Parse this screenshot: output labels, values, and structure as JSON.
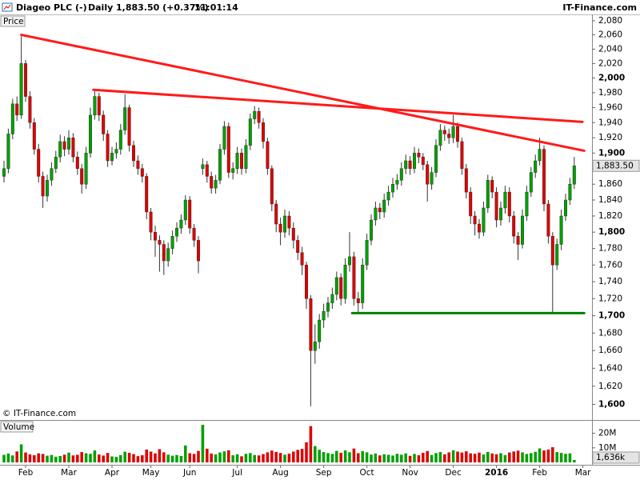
{
  "header": {
    "title": "Diageo PLC (-)",
    "interval": "Daily",
    "quote": "1,883.50 (+0.37%)",
    "time": "11:01:14",
    "brand": "IT-Finance.com"
  },
  "chart_data": {
    "type": "candlestick",
    "price_label": "Price",
    "volume_label": "Volume",
    "credit": "© IT-Finance.com",
    "up_color": "#00a000",
    "down_color": "#dd0000",
    "wick_color": "#333333",
    "log": true,
    "ylim": [
      1583,
      2089
    ],
    "yticks": [
      {
        "value": 1600,
        "label": "1,600"
      },
      {
        "value": 1620,
        "label": "1,620"
      },
      {
        "value": 1640,
        "label": "1,640"
      },
      {
        "value": 1660,
        "label": "1,660"
      },
      {
        "value": 1680,
        "label": "1,680"
      },
      {
        "value": 1700,
        "label": "1,700"
      },
      {
        "value": 1720,
        "label": "1,720"
      },
      {
        "value": 1740,
        "label": "1,740"
      },
      {
        "value": 1760,
        "label": "1,760"
      },
      {
        "value": 1780,
        "label": "1,780"
      },
      {
        "value": 1800,
        "label": "1,800"
      },
      {
        "value": 1820,
        "label": "1,820"
      },
      {
        "value": 1840,
        "label": "1,840"
      },
      {
        "value": 1860,
        "label": "1,860"
      },
      {
        "value": 1880,
        "label": "1,880"
      },
      {
        "value": 1900,
        "label": "1,900"
      },
      {
        "value": 1920,
        "label": "1,920"
      },
      {
        "value": 1940,
        "label": "1,940"
      },
      {
        "value": 1960,
        "label": "1,960"
      },
      {
        "value": 1980,
        "label": "1,980"
      },
      {
        "value": 2000,
        "label": "2,000"
      },
      {
        "value": 2020,
        "label": "2,020"
      },
      {
        "value": 2040,
        "label": "2,040"
      },
      {
        "value": 2060,
        "label": "2,060"
      },
      {
        "value": 2080,
        "label": "2,080"
      }
    ],
    "last_price": {
      "value": 1883.5,
      "label": "1,883.50"
    },
    "volume_ylim": [
      0,
      28
    ],
    "volume_ticks": [
      {
        "value": 20,
        "label": "20M"
      },
      {
        "value": 10,
        "label": "10M"
      }
    ],
    "last_volume": {
      "value": 1.636,
      "label": "1,636k"
    },
    "categories": [
      null,
      null,
      null,
      null,
      null,
      "Feb",
      null,
      null,
      null,
      null,
      null,
      null,
      null,
      null,
      null,
      "Mar",
      null,
      null,
      null,
      null,
      null,
      null,
      null,
      null,
      null,
      "Apr",
      null,
      null,
      null,
      null,
      null,
      null,
      null,
      null,
      "May",
      null,
      null,
      null,
      null,
      null,
      null,
      null,
      null,
      "Jun",
      null,
      null,
      null,
      null,
      null,
      null,
      null,
      null,
      null,
      null,
      "Jul",
      null,
      null,
      null,
      null,
      null,
      null,
      null,
      null,
      null,
      "Aug",
      null,
      null,
      null,
      null,
      null,
      null,
      null,
      null,
      null,
      "Sep",
      null,
      null,
      null,
      null,
      null,
      null,
      null,
      null,
      null,
      "Oct",
      null,
      null,
      null,
      null,
      null,
      null,
      null,
      null,
      null,
      "Nov",
      null,
      null,
      null,
      null,
      null,
      null,
      null,
      null,
      null,
      "Dec",
      null,
      null,
      null,
      null,
      null,
      null,
      null,
      null,
      null,
      "2016",
      null,
      null,
      null,
      null,
      null,
      null,
      null,
      null,
      null,
      "Feb",
      null,
      null,
      null,
      null,
      null,
      null,
      null,
      null,
      null,
      "Mar",
      null
    ],
    "open": [
      1870,
      1880,
      1925,
      1965,
      1950,
      2020,
      1975,
      1940,
      1905,
      1870,
      1845,
      1865,
      1880,
      1895,
      1915,
      1905,
      1920,
      1895,
      1880,
      1860,
      1900,
      1950,
      1975,
      1950,
      1925,
      1890,
      1900,
      1905,
      1930,
      1960,
      1910,
      1890,
      1880,
      1870,
      1825,
      1800,
      1790,
      1785,
      1765,
      1780,
      1795,
      1805,
      1815,
      1840,
      1805,
      1790,
      1880,
      1885,
      1870,
      1855,
      1865,
      1905,
      1935,
      1875,
      1880,
      1900,
      1880,
      1910,
      1945,
      1955,
      1940,
      1915,
      1880,
      1835,
      1810,
      1800,
      1820,
      1805,
      1790,
      1775,
      1760,
      1720,
      1660,
      1670,
      1695,
      1705,
      1715,
      1725,
      1745,
      1720,
      1760,
      1770,
      1720,
      1715,
      1760,
      1790,
      1815,
      1830,
      1825,
      1840,
      1850,
      1860,
      1865,
      1880,
      1890,
      1880,
      1900,
      1895,
      1885,
      1860,
      1875,
      1910,
      1930,
      1925,
      1920,
      1935,
      1915,
      1880,
      1850,
      1820,
      1810,
      1800,
      1830,
      1865,
      1850,
      1815,
      1830,
      1850,
      1820,
      1795,
      1785,
      1820,
      1850,
      1875,
      1890,
      1905,
      1835,
      1795,
      1760,
      1785,
      1820,
      1840,
      1860,
      null,
      null,
      null
    ],
    "high": [
      1890,
      1932,
      1972,
      1975,
      2058,
      2025,
      1982,
      1946,
      1912,
      1876,
      1872,
      1888,
      1903,
      1924,
      1922,
      1930,
      1926,
      1902,
      1886,
      1908,
      1960,
      1982,
      1980,
      1956,
      1930,
      1908,
      1914,
      1938,
      1978,
      1964,
      1916,
      1897,
      1886,
      1874,
      1830,
      1808,
      1796,
      1790,
      1787,
      1802,
      1812,
      1822,
      1846,
      1845,
      1810,
      1795,
      1893,
      1890,
      1876,
      1872,
      1912,
      1942,
      1940,
      1888,
      1908,
      1906,
      1918,
      1952,
      1962,
      1960,
      1946,
      1920,
      1884,
      1840,
      1818,
      1828,
      1826,
      1812,
      1796,
      1782,
      1764,
      1724,
      1690,
      1702,
      1714,
      1722,
      1733,
      1752,
      1750,
      1768,
      1800,
      1776,
      1728,
      1768,
      1798,
      1822,
      1838,
      1836,
      1848,
      1858,
      1868,
      1873,
      1888,
      1898,
      1896,
      1908,
      1906,
      1900,
      1890,
      1882,
      1918,
      1938,
      1936,
      1932,
      1950,
      1940,
      1920,
      1886,
      1856,
      1826,
      1816,
      1838,
      1872,
      1870,
      1856,
      1838,
      1858,
      1856,
      1826,
      1800,
      1828,
      1858,
      1882,
      1898,
      1920,
      1910,
      1840,
      1800,
      1792,
      1828,
      1848,
      1868,
      1895,
      null,
      null,
      null
    ],
    "low": [
      1862,
      1874,
      1918,
      1942,
      1945,
      1968,
      1932,
      1898,
      1862,
      1830,
      1838,
      1858,
      1874,
      1888,
      1896,
      1898,
      1888,
      1872,
      1848,
      1854,
      1894,
      1944,
      1942,
      1916,
      1882,
      1884,
      1893,
      1898,
      1924,
      1902,
      1882,
      1872,
      1862,
      1816,
      1790,
      1770,
      1752,
      1748,
      1758,
      1773,
      1788,
      1798,
      1809,
      1798,
      1782,
      1750,
      1872,
      1862,
      1848,
      1848,
      1860,
      1898,
      1868,
      1866,
      1873,
      1872,
      1874,
      1904,
      1938,
      1932,
      1906,
      1872,
      1826,
      1800,
      1784,
      1793,
      1796,
      1780,
      1766,
      1748,
      1708,
      1598,
      1645,
      1662,
      1686,
      1698,
      1708,
      1718,
      1712,
      1714,
      1752,
      1712,
      1704,
      1708,
      1754,
      1784,
      1808,
      1816,
      1818,
      1833,
      1843,
      1853,
      1858,
      1873,
      1872,
      1874,
      1887,
      1878,
      1838,
      1853,
      1869,
      1903,
      1916,
      1912,
      1913,
      1907,
      1872,
      1842,
      1810,
      1796,
      1792,
      1795,
      1824,
      1842,
      1806,
      1808,
      1823,
      1812,
      1786,
      1766,
      1780,
      1814,
      1844,
      1868,
      1884,
      1826,
      1786,
      1702,
      1754,
      1778,
      1814,
      1834,
      1854,
      null,
      null,
      null
    ],
    "close": [
      1880,
      1925,
      1965,
      1950,
      2020,
      1975,
      1940,
      1905,
      1870,
      1845,
      1865,
      1880,
      1895,
      1915,
      1905,
      1920,
      1895,
      1880,
      1860,
      1900,
      1950,
      1975,
      1950,
      1925,
      1890,
      1900,
      1905,
      1930,
      1960,
      1910,
      1890,
      1880,
      1870,
      1825,
      1800,
      1790,
      1785,
      1765,
      1780,
      1795,
      1805,
      1815,
      1840,
      1805,
      1790,
      1765,
      1885,
      1870,
      1855,
      1865,
      1905,
      1935,
      1875,
      1880,
      1900,
      1880,
      1910,
      1945,
      1955,
      1940,
      1915,
      1880,
      1835,
      1810,
      1800,
      1820,
      1805,
      1790,
      1775,
      1760,
      1720,
      1660,
      1670,
      1695,
      1705,
      1715,
      1725,
      1745,
      1720,
      1760,
      1770,
      1720,
      1715,
      1760,
      1790,
      1815,
      1830,
      1825,
      1840,
      1850,
      1860,
      1865,
      1880,
      1890,
      1880,
      1900,
      1895,
      1885,
      1860,
      1875,
      1910,
      1930,
      1925,
      1920,
      1935,
      1915,
      1880,
      1850,
      1820,
      1810,
      1800,
      1830,
      1865,
      1850,
      1815,
      1830,
      1850,
      1820,
      1795,
      1785,
      1820,
      1850,
      1875,
      1890,
      1905,
      1835,
      1795,
      1760,
      1785,
      1820,
      1840,
      1860,
      1883.5,
      null,
      null,
      null
    ],
    "volume": [
      5.2,
      6.1,
      4.8,
      7.5,
      12.4,
      6.8,
      5.5,
      4.9,
      6.2,
      5.8,
      4.6,
      5.1,
      3.9,
      4.4,
      5.3,
      6.7,
      4.8,
      5.2,
      7.1,
      6.3,
      5.9,
      8.2,
      5.4,
      4.7,
      6.5,
      4.1,
      3.8,
      5.0,
      7.3,
      6.6,
      5.7,
      4.3,
      4.9,
      8.8,
      7.4,
      6.2,
      9.1,
      6.9,
      5.3,
      4.6,
      5.1,
      4.4,
      11.6,
      6.3,
      5.8,
      7.9,
      25.8,
      9.4,
      6.1,
      5.5,
      6.8,
      7.6,
      8.3,
      4.9,
      5.6,
      4.2,
      5.9,
      6.4,
      5.1,
      4.8,
      5.7,
      6.9,
      8.1,
      7.2,
      6.5,
      5.3,
      6.0,
      7.4,
      8.6,
      9.3,
      13.8,
      24.9,
      11.2,
      8.7,
      7.1,
      6.4,
      5.8,
      7.9,
      6.6,
      8.2,
      7.0,
      9.5,
      6.3,
      7.7,
      6.9,
      5.4,
      6.1,
      4.8,
      5.6,
      5.2,
      4.7,
      5.9,
      5.3,
      6.2,
      4.5,
      5.8,
      4.9,
      6.6,
      7.8,
      5.1,
      6.4,
      7.1,
      5.5,
      6.9,
      8.3,
      7.4,
      6.8,
      7.6,
      6.2,
      5.9,
      6.7,
      5.4,
      7.2,
      6.1,
      5.6,
      6.3,
      5.0,
      6.8,
      7.5,
      8.1,
      6.9,
      5.8,
      6.4,
      7.3,
      9.6,
      8.2,
      8.8,
      10.4,
      7.1,
      6.5,
      5.9,
      6.2,
      1.636,
      null,
      null,
      null
    ],
    "trendlines": [
      {
        "color": "#ff1a1a",
        "points": [
          [
            4,
            2060
          ],
          [
            134.3,
            1903
          ]
        ]
      },
      {
        "color": "#ff1a1a",
        "points": [
          [
            20.7,
            1984
          ],
          [
            133.9,
            1941
          ]
        ]
      },
      {
        "color": "#008000",
        "points": [
          [
            80.6,
            1703
          ],
          [
            134.3,
            1703
          ]
        ]
      }
    ]
  }
}
